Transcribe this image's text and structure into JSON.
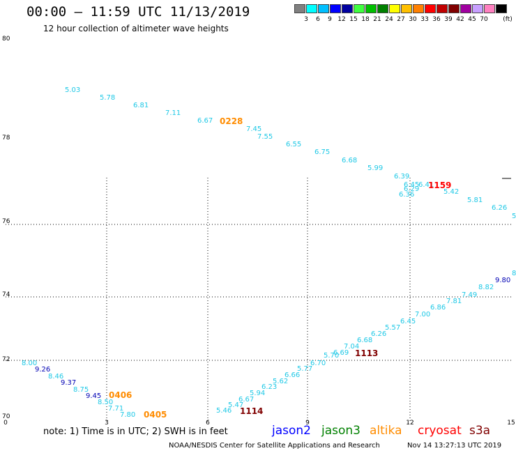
{
  "header": {
    "title": "00:00 – 11:59 UTC 11/13/2019",
    "subtitle": "12 hour collection of altimeter wave heights"
  },
  "color_scale": {
    "unit_label": "(ft)",
    "bins": [
      {
        "label": "",
        "color": "#808080"
      },
      {
        "label": "3",
        "color": "#00ffff"
      },
      {
        "label": "6",
        "color": "#00bfff"
      },
      {
        "label": "9",
        "color": "#0000ff"
      },
      {
        "label": "12",
        "color": "#0000a0"
      },
      {
        "label": "15",
        "color": "#40ff40"
      },
      {
        "label": "18",
        "color": "#00c000"
      },
      {
        "label": "21",
        "color": "#008000"
      },
      {
        "label": "24",
        "color": "#ffff00"
      },
      {
        "label": "27",
        "color": "#ffc000"
      },
      {
        "label": "30",
        "color": "#ff8000"
      },
      {
        "label": "33",
        "color": "#ff0000"
      },
      {
        "label": "36",
        "color": "#c00000"
      },
      {
        "label": "39",
        "color": "#800000"
      },
      {
        "label": "42",
        "color": "#a000a0"
      },
      {
        "label": "45",
        "color": "#c8a0ff"
      },
      {
        "label": "70",
        "color": "#ff80c0"
      },
      {
        "label": "",
        "color": "#000000"
      }
    ]
  },
  "axes": {
    "lat_labels": [
      "80",
      "78",
      "76",
      "74",
      "72",
      "70"
    ],
    "lon_labels": [
      "0",
      "3",
      "6",
      "9",
      "12",
      "15"
    ]
  },
  "observations": {
    "track_a": [
      {
        "value": "5.03",
        "color": "#1ec8e6"
      },
      {
        "value": "5.78",
        "color": "#1ec8e6"
      },
      {
        "value": "6.81",
        "color": "#1ec8e6"
      },
      {
        "value": "7.11",
        "color": "#1ec8e6"
      },
      {
        "value": "6.67",
        "color": "#1ec8e6"
      },
      {
        "value": "7.45",
        "color": "#1ec8e6"
      },
      {
        "value": "7.55",
        "color": "#1ec8e6"
      },
      {
        "value": "6.55",
        "color": "#1ec8e6"
      },
      {
        "value": "6.75",
        "color": "#1ec8e6"
      },
      {
        "value": "6.68",
        "color": "#1ec8e6"
      },
      {
        "value": "5.99",
        "color": "#1ec8e6"
      },
      {
        "value": "6.39",
        "color": "#1ec8e6"
      },
      {
        "value": "6.45",
        "color": "#1ec8e6"
      },
      {
        "value": "6.41",
        "color": "#1ec8e6"
      },
      {
        "value": "6.29",
        "color": "#1ec8e6"
      },
      {
        "value": "6.36",
        "color": "#1ec8e6"
      },
      {
        "value": "5.42",
        "color": "#1ec8e6"
      },
      {
        "value": "5.81",
        "color": "#1ec8e6"
      },
      {
        "value": "6.26",
        "color": "#1ec8e6"
      },
      {
        "value": "5",
        "color": "#1ec8e6"
      }
    ],
    "track_b": [
      {
        "value": "8.00",
        "color": "#1ec8e6"
      },
      {
        "value": "9.26",
        "color": "#0000b4"
      },
      {
        "value": "8.46",
        "color": "#1ec8e6"
      },
      {
        "value": "9.37",
        "color": "#0000b4"
      },
      {
        "value": "8.75",
        "color": "#1ec8e6"
      },
      {
        "value": "9.45",
        "color": "#0000b4"
      },
      {
        "value": "8.50",
        "color": "#1ec8e6"
      },
      {
        "value": "7.71",
        "color": "#1ec8e6"
      },
      {
        "value": "7.80",
        "color": "#1ec8e6"
      }
    ],
    "track_c": [
      {
        "value": "5.46",
        "color": "#1ec8e6"
      },
      {
        "value": "5.47",
        "color": "#1ec8e6"
      },
      {
        "value": "6.67",
        "color": "#1ec8e6"
      },
      {
        "value": "5.94",
        "color": "#1ec8e6"
      },
      {
        "value": "6.23",
        "color": "#1ec8e6"
      },
      {
        "value": "5.62",
        "color": "#1ec8e6"
      },
      {
        "value": "6.66",
        "color": "#1ec8e6"
      },
      {
        "value": "5.77",
        "color": "#1ec8e6"
      },
      {
        "value": "6.70",
        "color": "#1ec8e6"
      },
      {
        "value": "5.70",
        "color": "#1ec8e6"
      },
      {
        "value": "6.69",
        "color": "#1ec8e6"
      },
      {
        "value": "7.04",
        "color": "#1ec8e6"
      },
      {
        "value": "6.68",
        "color": "#1ec8e6"
      },
      {
        "value": "6.26",
        "color": "#1ec8e6"
      },
      {
        "value": "5.57",
        "color": "#1ec8e6"
      },
      {
        "value": "6.45",
        "color": "#1ec8e6"
      },
      {
        "value": "7.00",
        "color": "#1ec8e6"
      },
      {
        "value": "6.86",
        "color": "#1ec8e6"
      },
      {
        "value": "7.81",
        "color": "#1ec8e6"
      },
      {
        "value": "7.49",
        "color": "#1ec8e6"
      },
      {
        "value": "8.82",
        "color": "#1ec8e6"
      },
      {
        "value": "9.80",
        "color": "#0000b4"
      },
      {
        "value": "8",
        "color": "#1ec8e6"
      }
    ],
    "pass_times": [
      {
        "value": "0228",
        "color": "#ff8c00"
      },
      {
        "value": "1159",
        "color": "#ff0000"
      },
      {
        "value": "0406",
        "color": "#ff8c00"
      },
      {
        "value": "0405",
        "color": "#ff8c00"
      },
      {
        "value": "1114",
        "color": "#800000"
      },
      {
        "value": "1113",
        "color": "#800000"
      }
    ]
  },
  "legend": {
    "note": "note: 1) Time is in UTC; 2) SWH is in feet",
    "satellites": [
      {
        "name": "jason2",
        "color": "#0000ff"
      },
      {
        "name": "jason3",
        "color": "#008000"
      },
      {
        "name": "altika",
        "color": "#ff8c00"
      },
      {
        "name": "cryosat",
        "color": "#ff0000"
      },
      {
        "name": "s3a",
        "color": "#800000"
      }
    ]
  },
  "footer": {
    "credit": "NOAA/NESDIS Center for Satellite Applications and Research",
    "generated": "Nov 14 13:27:13 UTC 2019"
  }
}
